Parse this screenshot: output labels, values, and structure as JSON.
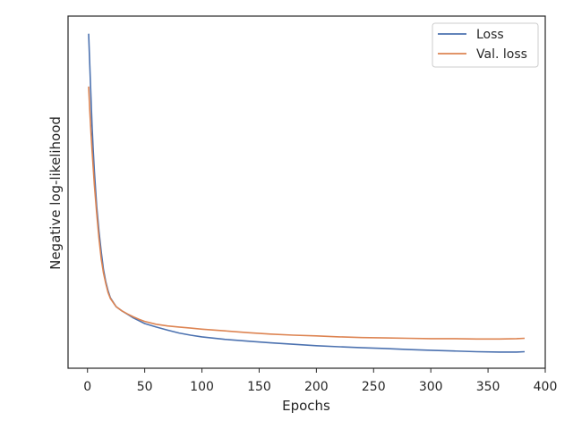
{
  "chart_data": {
    "type": "line",
    "title": "",
    "xlabel": "Epochs",
    "ylabel": "Negative log-likelihood",
    "xlim": [
      -17,
      400
    ],
    "ylim": [
      0,
      1
    ],
    "x_ticks": [
      0,
      50,
      100,
      150,
      200,
      250,
      300,
      350,
      400
    ],
    "y_ticks_visible": false,
    "grid": false,
    "legend": {
      "position": "top-right",
      "entries": [
        "Loss",
        "Val. loss"
      ]
    },
    "series": [
      {
        "name": "Loss",
        "color": "#4c72b0",
        "x": [
          1,
          2,
          3,
          4,
          5,
          6,
          8,
          10,
          12,
          14,
          16,
          18,
          20,
          25,
          30,
          35,
          40,
          45,
          50,
          60,
          70,
          80,
          90,
          100,
          120,
          140,
          160,
          180,
          200,
          220,
          240,
          260,
          280,
          300,
          320,
          340,
          360,
          375,
          382
        ],
        "values": [
          0.95,
          0.86,
          0.77,
          0.69,
          0.62,
          0.56,
          0.46,
          0.39,
          0.33,
          0.28,
          0.245,
          0.22,
          0.2,
          0.175,
          0.163,
          0.153,
          0.143,
          0.135,
          0.127,
          0.117,
          0.108,
          0.1,
          0.094,
          0.089,
          0.082,
          0.077,
          0.072,
          0.068,
          0.064,
          0.061,
          0.058,
          0.056,
          0.053,
          0.051,
          0.049,
          0.047,
          0.046,
          0.046,
          0.047
        ]
      },
      {
        "name": "Val. loss",
        "color": "#dd8452",
        "x": [
          1,
          2,
          3,
          4,
          5,
          6,
          8,
          10,
          12,
          14,
          16,
          18,
          20,
          25,
          30,
          35,
          40,
          45,
          50,
          60,
          70,
          80,
          90,
          100,
          120,
          140,
          160,
          180,
          200,
          220,
          240,
          260,
          280,
          300,
          320,
          340,
          360,
          375,
          382
        ],
        "values": [
          0.8,
          0.73,
          0.67,
          0.62,
          0.57,
          0.52,
          0.44,
          0.37,
          0.31,
          0.27,
          0.24,
          0.215,
          0.198,
          0.175,
          0.163,
          0.154,
          0.146,
          0.139,
          0.133,
          0.125,
          0.12,
          0.117,
          0.114,
          0.111,
          0.106,
          0.101,
          0.097,
          0.094,
          0.092,
          0.089,
          0.087,
          0.086,
          0.085,
          0.084,
          0.084,
          0.083,
          0.083,
          0.084,
          0.085
        ]
      }
    ]
  }
}
